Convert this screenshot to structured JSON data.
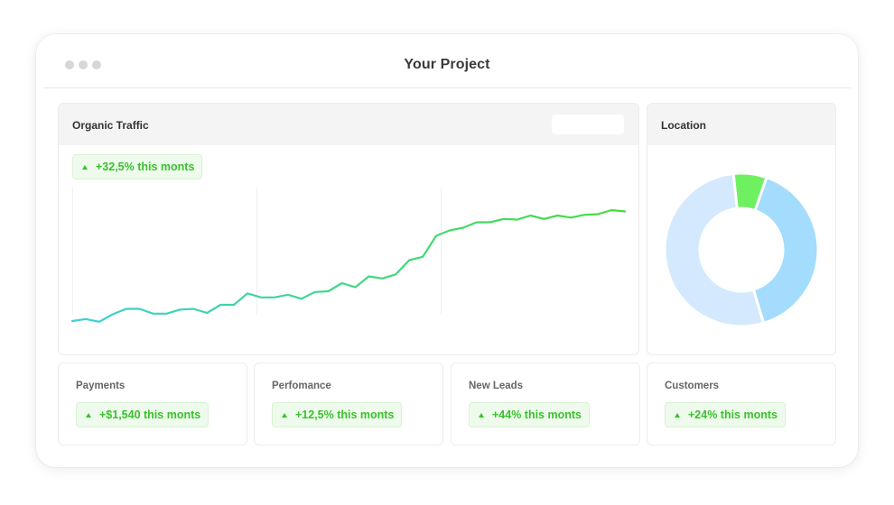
{
  "window": {
    "title": "Your Project"
  },
  "traffic": {
    "title": "Organic Traffic",
    "badge": "+32,5% this monts",
    "chart_data": {
      "type": "line",
      "x": [
        1,
        2,
        3,
        4,
        5,
        6,
        7,
        8,
        9,
        10,
        11,
        12,
        13,
        14,
        15,
        16,
        17,
        18,
        19,
        20,
        21,
        22,
        23,
        24,
        25,
        26,
        27,
        28,
        29,
        30,
        31,
        32,
        33,
        34,
        35,
        36,
        37,
        38,
        39,
        40,
        41,
        42
      ],
      "series": [
        {
          "values": [
            4,
            7,
            3,
            14,
            22,
            22,
            15,
            15,
            21,
            22,
            16,
            28,
            28,
            45,
            39,
            39,
            43,
            37,
            47,
            48,
            60,
            54,
            70,
            67,
            73,
            94,
            99,
            130,
            138,
            142,
            150,
            150,
            155,
            154,
            160,
            155,
            160,
            157,
            161,
            162,
            168,
            166
          ]
        }
      ],
      "ylim": [
        0,
        200
      ],
      "grid": "vertical",
      "colors": {
        "start": "#3cd0d6",
        "end": "#46dd3c"
      }
    }
  },
  "location": {
    "title": "Location",
    "chart_data": {
      "type": "pie",
      "donut": true,
      "values": [
        7,
        40,
        53
      ],
      "colors": [
        "#6ff061",
        "#a3dcfc",
        "#d4e9fd"
      ]
    }
  },
  "stats": [
    {
      "title": "Payments",
      "badge": "+$1,540 this monts"
    },
    {
      "title": "Perfomance",
      "badge": "+12,5% this monts"
    },
    {
      "title": "New Leads",
      "badge": "+44% this monts"
    },
    {
      "title": "Customers",
      "badge": "+24% this monts"
    }
  ]
}
